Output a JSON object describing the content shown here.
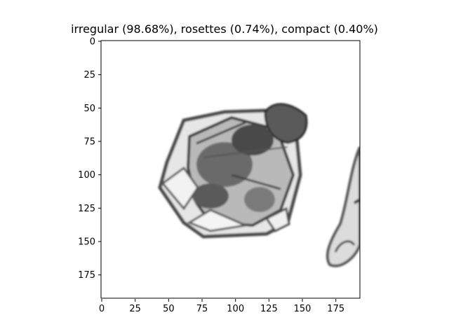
{
  "title": "irregular (98.68%), rosettes (0.74%), compact (0.40%)",
  "axes": {
    "x_ticks": [
      "0",
      "25",
      "50",
      "75",
      "100",
      "125",
      "150",
      "175"
    ],
    "y_ticks": [
      "0",
      "25",
      "50",
      "75",
      "100",
      "125",
      "150",
      "175"
    ]
  },
  "image": {
    "subject": "ice crystal particle (irregular) with partial particle at right edge",
    "colors": {
      "background": "#ffffff",
      "particle_dark": "#3a3a3a",
      "particle_mid": "#8a8a8a",
      "particle_light": "#d8d8d8"
    }
  }
}
